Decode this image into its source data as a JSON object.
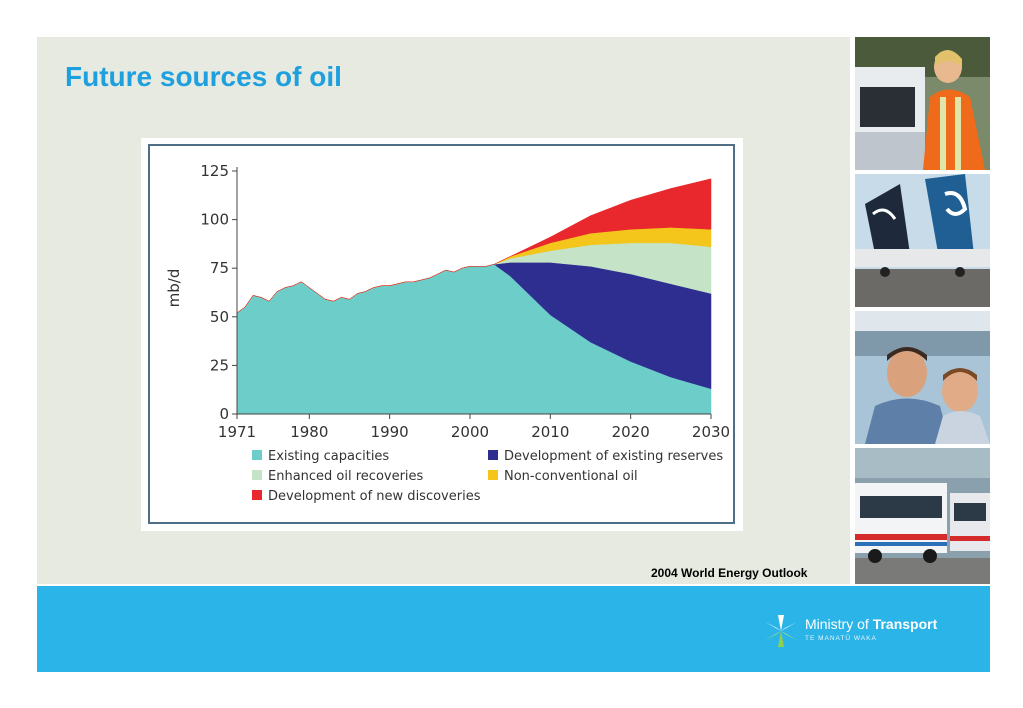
{
  "slide": {
    "title": "Future sources of oil",
    "source": "2004 World Energy Outlook"
  },
  "logo": {
    "name_regular": "Ministry of ",
    "name_bold": "Transport",
    "subtitle": "TE MANATŪ WAKA",
    "icon": "koru-star-icon"
  },
  "photos": [
    {
      "icon": "photo-woman-with-car"
    },
    {
      "icon": "photo-aircraft-tails"
    },
    {
      "icon": "photo-man-and-boy-ferry"
    },
    {
      "icon": "photo-city-buses"
    }
  ],
  "colors": {
    "title": "#1ea0df",
    "panel": "#e6eae0",
    "footer": "#2bb4e8",
    "existing": "#6dcdc9",
    "reserves": "#2e2e91",
    "enhanced": "#c5e3c7",
    "nonconventional": "#f4c51a",
    "discoveries": "#e8282d"
  },
  "chart_data": {
    "type": "area",
    "stacked": true,
    "title": "",
    "xlabel": "",
    "ylabel": "mb/d",
    "xlim": [
      1971,
      2030
    ],
    "ylim": [
      0,
      125
    ],
    "x_ticks": [
      "1971",
      "1980",
      "1990",
      "2000",
      "2010",
      "2020",
      "2030"
    ],
    "x_tick_values": [
      1971,
      1980,
      1990,
      2000,
      2010,
      2020,
      2030
    ],
    "y_ticks": [
      "0",
      "25",
      "50",
      "75",
      "100",
      "125"
    ],
    "y_tick_values": [
      0,
      25,
      50,
      75,
      100,
      125
    ],
    "grid": false,
    "legend_placement": "bottom",
    "x": [
      1971,
      1972,
      1973,
      1974,
      1975,
      1976,
      1977,
      1978,
      1979,
      1980,
      1981,
      1982,
      1983,
      1984,
      1985,
      1986,
      1987,
      1988,
      1989,
      1990,
      1991,
      1992,
      1993,
      1994,
      1995,
      1996,
      1997,
      1998,
      1999,
      2000,
      2001,
      2002,
      2003,
      2005,
      2010,
      2015,
      2020,
      2025,
      2030
    ],
    "series": [
      {
        "name": "Existing capacities",
        "color": "#6dcdc9",
        "values": [
          52,
          55,
          61,
          60,
          58,
          63,
          65,
          66,
          68,
          65,
          62,
          59,
          58,
          60,
          59,
          62,
          63,
          65,
          66,
          66,
          67,
          68,
          68,
          69,
          70,
          72,
          74,
          73,
          75,
          76,
          76,
          76,
          77,
          71,
          51,
          37,
          27,
          19,
          13
        ]
      },
      {
        "name": "Development of existing reserves",
        "color": "#2e2e91",
        "values": [
          0,
          0,
          0,
          0,
          0,
          0,
          0,
          0,
          0,
          0,
          0,
          0,
          0,
          0,
          0,
          0,
          0,
          0,
          0,
          0,
          0,
          0,
          0,
          0,
          0,
          0,
          0,
          0,
          0,
          0,
          0,
          0,
          0,
          7,
          27,
          39,
          45,
          48,
          49
        ]
      },
      {
        "name": "Enhanced oil recoveries",
        "color": "#c5e3c7",
        "values": [
          0,
          0,
          0,
          0,
          0,
          0,
          0,
          0,
          0,
          0,
          0,
          0,
          0,
          0,
          0,
          0,
          0,
          0,
          0,
          0,
          0,
          0,
          0,
          0,
          0,
          0,
          0,
          0,
          0,
          0,
          0,
          0,
          0,
          2,
          6,
          11,
          16,
          21,
          24
        ]
      },
      {
        "name": "Non-conventional oil",
        "color": "#f4c51a",
        "values": [
          0,
          0,
          0,
          0,
          0,
          0,
          0,
          0,
          0,
          0,
          0,
          0,
          0,
          0,
          0,
          0,
          0,
          0,
          0,
          0,
          0,
          0,
          0,
          0,
          0,
          0,
          0,
          0,
          0,
          0,
          0,
          0,
          0,
          1,
          4,
          6,
          7,
          8,
          9
        ]
      },
      {
        "name": "Development of new discoveries",
        "color": "#e8282d",
        "values": [
          0,
          0,
          0,
          0,
          0,
          0,
          0,
          0,
          0,
          0,
          0,
          0,
          0,
          0,
          0,
          0,
          0,
          0,
          0,
          0,
          0,
          0,
          0,
          0,
          0,
          0,
          0,
          0,
          0,
          0,
          0,
          0,
          0,
          0,
          3,
          9,
          15,
          20,
          26
        ]
      }
    ],
    "legend": [
      {
        "label": "Existing capacities",
        "color": "#6dcdc9"
      },
      {
        "label": "Development of existing reserves",
        "color": "#2e2e91"
      },
      {
        "label": "Enhanced oil recoveries",
        "color": "#c5e3c7"
      },
      {
        "label": "Non-conventional oil",
        "color": "#f4c51a"
      },
      {
        "label": "Development of new discoveries",
        "color": "#e8282d"
      }
    ]
  }
}
